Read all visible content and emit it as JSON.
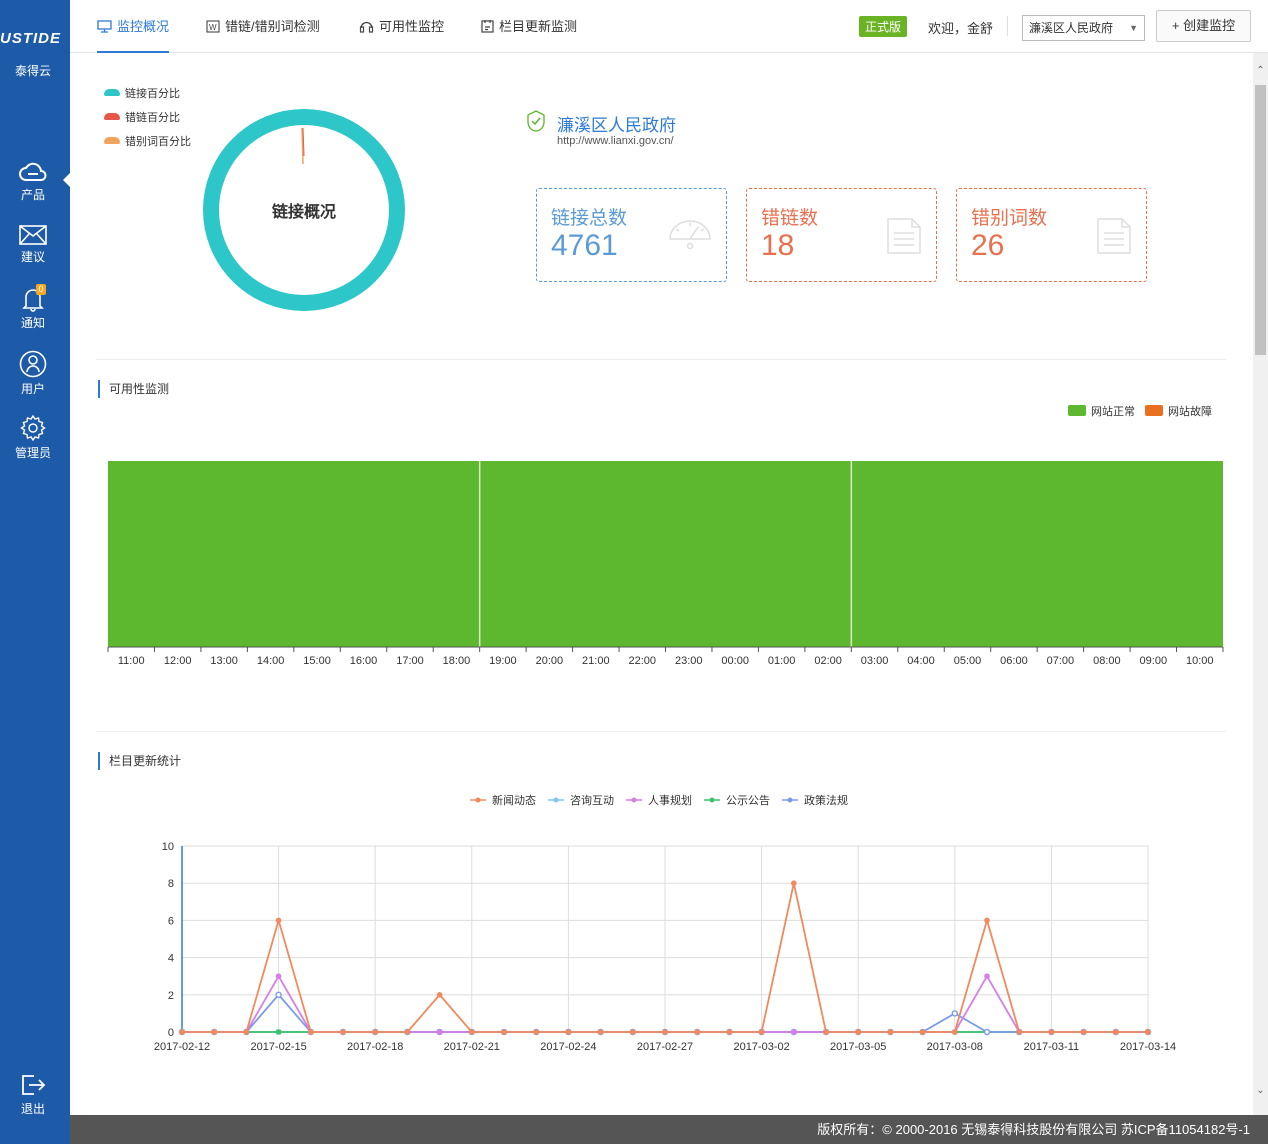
{
  "sidebar": {
    "logo": "USTIDE",
    "logo_sub": "泰得云",
    "items": [
      {
        "label": "产品",
        "icon": "cloud-icon"
      },
      {
        "label": "建议",
        "icon": "mail-icon"
      },
      {
        "label": "通知",
        "icon": "bell-icon",
        "badge": "0"
      },
      {
        "label": "用户",
        "icon": "user-icon"
      },
      {
        "label": "管理员",
        "icon": "gear-icon"
      },
      {
        "label": "退出",
        "icon": "logout-icon"
      }
    ]
  },
  "header": {
    "tabs": [
      {
        "label": "监控概况",
        "icon": "monitor-icon",
        "active": true
      },
      {
        "label": "错链/错别词检测",
        "icon": "word-doc-icon"
      },
      {
        "label": "可用性监控",
        "icon": "headset-icon"
      },
      {
        "label": "栏目更新监测",
        "icon": "doc-icon"
      }
    ],
    "edition": "正式版",
    "welcome": "欢迎，金舒",
    "region": "濂溪区人民政府",
    "create_button": "+ 创建监控"
  },
  "overview": {
    "legend": [
      "链接百分比",
      "错链百分比",
      "错别词百分比"
    ],
    "legend_colors": [
      "#2ec7c9",
      "#e5574a",
      "#f0a35d"
    ],
    "donut_title": "链接概况",
    "donut_values": {
      "links": 4761,
      "broken": 18,
      "typos": 26
    },
    "site_name": "濂溪区人民政府",
    "site_url": "http://www.lianxi.gov.cn/",
    "cards": [
      {
        "label": "链接总数",
        "value": "4761",
        "color": "#5b9bd5",
        "icon": "gauge-icon"
      },
      {
        "label": "错链数",
        "value": "18",
        "color": "#e8704e",
        "icon": "document-icon"
      },
      {
        "label": "错别词数",
        "value": "26",
        "color": "#e8704e",
        "icon": "document-icon"
      }
    ]
  },
  "availability": {
    "title": "可用性监测",
    "legend": [
      {
        "label": "网站正常",
        "color": "#5db82f"
      },
      {
        "label": "网站故障",
        "color": "#e8701e"
      }
    ],
    "hours": [
      "11:00",
      "12:00",
      "13:00",
      "14:00",
      "15:00",
      "16:00",
      "17:00",
      "18:00",
      "19:00",
      "20:00",
      "21:00",
      "22:00",
      "23:00",
      "00:00",
      "01:00",
      "02:00",
      "03:00",
      "04:00",
      "05:00",
      "06:00",
      "07:00",
      "08:00",
      "09:00",
      "10:00"
    ],
    "status": "网站正常"
  },
  "column_updates": {
    "title": "栏目更新统计"
  },
  "chart_data": {
    "type": "line",
    "title": "",
    "ylim": [
      0,
      10
    ],
    "yticks": [
      0,
      2,
      4,
      6,
      8,
      10
    ],
    "x_tick_labels": [
      "2017-02-12",
      "2017-02-15",
      "2017-02-18",
      "2017-02-21",
      "2017-02-24",
      "2017-02-27",
      "2017-03-02",
      "2017-03-05",
      "2017-03-08",
      "2017-03-11",
      "2017-03-14"
    ],
    "x": [
      "2017-02-12",
      "2017-02-13",
      "2017-02-14",
      "2017-02-15",
      "2017-02-16",
      "2017-02-17",
      "2017-02-18",
      "2017-02-19",
      "2017-02-20",
      "2017-02-21",
      "2017-02-22",
      "2017-02-23",
      "2017-02-24",
      "2017-02-25",
      "2017-02-26",
      "2017-02-27",
      "2017-02-28",
      "2017-03-01",
      "2017-03-02",
      "2017-03-03",
      "2017-03-04",
      "2017-03-05",
      "2017-03-06",
      "2017-03-07",
      "2017-03-08",
      "2017-03-09",
      "2017-03-10",
      "2017-03-11",
      "2017-03-12",
      "2017-03-13",
      "2017-03-14"
    ],
    "series": [
      {
        "name": "新闻动态",
        "color": "#f08a5d",
        "marker": "circle",
        "values": [
          0,
          0,
          0,
          6,
          0,
          0,
          0,
          0,
          2,
          0,
          0,
          0,
          0,
          0,
          0,
          0,
          0,
          0,
          0,
          8,
          0,
          0,
          0,
          0,
          0,
          6,
          0,
          0,
          0,
          0,
          0
        ]
      },
      {
        "name": "咨询互动",
        "color": "#7cc7f0",
        "marker": "square",
        "values": [
          0,
          0,
          0,
          0,
          0,
          0,
          0,
          0,
          0,
          0,
          0,
          0,
          0,
          0,
          0,
          0,
          0,
          0,
          0,
          0,
          0,
          0,
          0,
          0,
          0,
          0,
          0,
          0,
          0,
          0,
          0
        ]
      },
      {
        "name": "人事规划",
        "color": "#d77ee8",
        "marker": "triangle",
        "values": [
          0,
          0,
          0,
          3,
          0,
          0,
          0,
          0,
          0,
          0,
          0,
          0,
          0,
          0,
          0,
          0,
          0,
          0,
          0,
          0,
          0,
          0,
          0,
          0,
          0,
          3,
          0,
          0,
          0,
          0,
          0
        ]
      },
      {
        "name": "公示公告",
        "color": "#3cc46a",
        "marker": "diamond",
        "values": [
          0,
          0,
          0,
          0,
          0,
          0,
          0,
          0,
          0,
          0,
          0,
          0,
          0,
          0,
          0,
          0,
          0,
          0,
          0,
          0,
          0,
          0,
          0,
          0,
          0,
          0,
          0,
          0,
          0,
          0,
          0
        ]
      },
      {
        "name": "政策法规",
        "color": "#7a9be8",
        "marker": "open-circle",
        "values": [
          0,
          0,
          0,
          2,
          0,
          0,
          0,
          0,
          0,
          0,
          0,
          0,
          0,
          0,
          0,
          0,
          0,
          0,
          0,
          0,
          0,
          0,
          0,
          0,
          1,
          0,
          0,
          0,
          0,
          0,
          0
        ]
      }
    ],
    "grid": true,
    "legend_position": "top-center"
  },
  "footer": {
    "copyright": "版权所有：© 2000-2016 无锡泰得科技股份有限公司    苏ICP备11054182号-1"
  }
}
